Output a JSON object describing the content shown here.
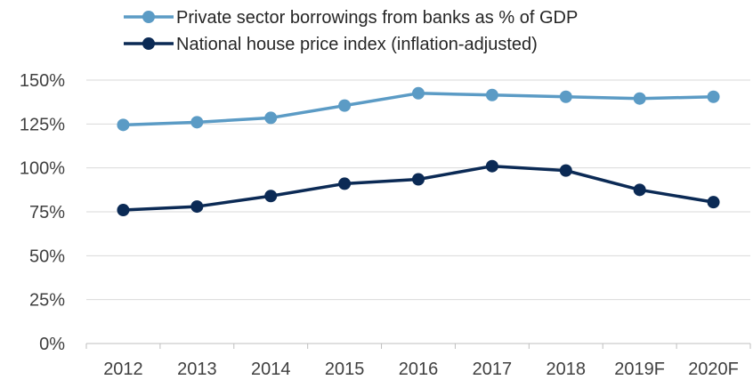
{
  "chart_data": {
    "type": "line",
    "title": "",
    "xlabel": "",
    "ylabel": "",
    "categories": [
      "2012",
      "2013",
      "2014",
      "2015",
      "2016",
      "2017",
      "2018",
      "2019F",
      "2020F"
    ],
    "ylim": [
      0,
      150
    ],
    "y_ticks": [
      {
        "value": 0,
        "label": "0%"
      },
      {
        "value": 25,
        "label": "25%"
      },
      {
        "value": 50,
        "label": "50%"
      },
      {
        "value": 75,
        "label": "75%"
      },
      {
        "value": 100,
        "label": "100%"
      },
      {
        "value": 125,
        "label": "125%"
      },
      {
        "value": 150,
        "label": "150%"
      }
    ],
    "grid": "horizontal",
    "legend_position": "top-center",
    "series": [
      {
        "name": "Private sector borrowings from banks as % of GDP",
        "color": "#5b9bc5",
        "values": [
          124.5,
          126,
          128.5,
          135.5,
          142.5,
          141.5,
          140.5,
          139.5,
          140.5
        ]
      },
      {
        "name": "National house price index (inflation-adjusted)",
        "color": "#0b2a55",
        "values": [
          76,
          78,
          84,
          91,
          93.5,
          101,
          98.5,
          87.5,
          80.5
        ]
      }
    ]
  }
}
